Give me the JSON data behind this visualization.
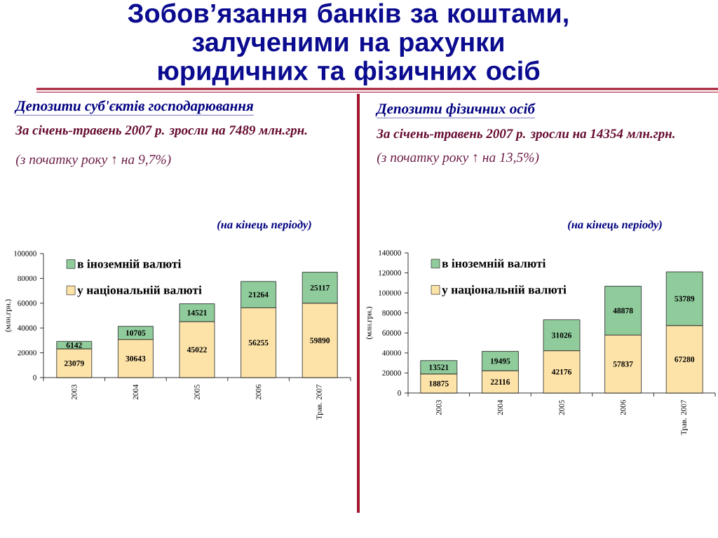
{
  "chart_data": [
    {
      "type": "other",
      "title": "Зобов’язання банків за коштами, залученими на рахунки юридичних та фізичних осіб"
    },
    {
      "type": "bar",
      "title": "Депозити суб'єктів господарювання",
      "subtitle": "За січень-травень 2007 р. зросли на 7489 млн.грн.",
      "annotations": [
        "(з початку року ↑ на 9,7%)",
        "(на кінець періоду)"
      ],
      "ylabel": "(млн.грн.)",
      "categories": [
        "2003",
        "2004",
        "2005",
        "2006",
        "Трав. 2007"
      ],
      "stacked": true,
      "series": [
        {
          "name": "у національній валюті",
          "color": "#fde3a7",
          "values": [
            23079,
            30643,
            45022,
            56255,
            59890
          ]
        },
        {
          "name": "в іноземній валюті",
          "color": "#8fcb9b",
          "values": [
            6142,
            10705,
            14521,
            21264,
            25117
          ]
        }
      ],
      "ylim": [
        0,
        100000
      ],
      "yticks": [
        0,
        20000,
        40000,
        60000,
        80000,
        100000
      ],
      "data_labels": true,
      "legend": "top left"
    },
    {
      "type": "bar",
      "title": "Депозити фізичних осіб",
      "subtitle": "За січень-травень 2007 р. зросли на 14354 млн.грн.",
      "annotations": [
        "(з початку року ↑ на 13,5%)",
        "(на кінець періоду)"
      ],
      "ylabel": "(млн.грн.)",
      "categories": [
        "2003",
        "2004",
        "2005",
        "2006",
        "Трав. 2007"
      ],
      "stacked": true,
      "series": [
        {
          "name": "у національній валюті",
          "color": "#fde3a7",
          "values": [
            18875,
            22116,
            42176,
            57837,
            67280
          ]
        },
        {
          "name": "в іноземній валюті",
          "color": "#8fcb9b",
          "values": [
            13521,
            19495,
            31026,
            48878,
            53789
          ]
        }
      ],
      "ylim": [
        0,
        140000
      ],
      "yticks": [
        0,
        20000,
        40000,
        60000,
        80000,
        100000,
        120000,
        140000
      ],
      "data_labels": true,
      "legend": "top left"
    }
  ]
}
